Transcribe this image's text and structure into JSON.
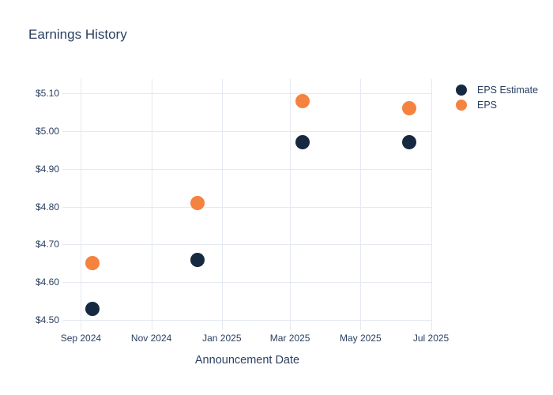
{
  "chart_data": {
    "type": "scatter",
    "title": "Earnings History",
    "xlabel": "Announcement Date",
    "ylabel": "",
    "text_color": "#2a3f5f",
    "grid": true,
    "grid_color": "#e5e9f2",
    "background": "#ffffff",
    "legend_position": "top-right",
    "x_range": [
      "2024-08-16",
      "2025-07-02"
    ],
    "y_range": [
      4.473,
      5.138
    ],
    "x_ticks": [
      {
        "x": "2024-09-01",
        "label": "Sep 2024"
      },
      {
        "x": "2024-11-01",
        "label": "Nov 2024"
      },
      {
        "x": "2025-01-01",
        "label": "Jan 2025"
      },
      {
        "x": "2025-03-01",
        "label": "Mar 2025"
      },
      {
        "x": "2025-05-01",
        "label": "May 2025"
      },
      {
        "x": "2025-07-01",
        "label": "Jul 2025"
      }
    ],
    "y_ticks": [
      {
        "y": 4.5,
        "label": "$4.50"
      },
      {
        "y": 4.6,
        "label": "$4.60"
      },
      {
        "y": 4.7,
        "label": "$4.70"
      },
      {
        "y": 4.8,
        "label": "$4.80"
      },
      {
        "y": 4.9,
        "label": "$4.90"
      },
      {
        "y": 5.0,
        "label": "$5.00"
      },
      {
        "y": 5.1,
        "label": "$5.10"
      }
    ],
    "marker_size": 18,
    "series": [
      {
        "name": "EPS Estimate",
        "color": "#172940",
        "points": [
          {
            "x": "2024-09-11",
            "y": 4.53
          },
          {
            "x": "2024-12-11",
            "y": 4.66
          },
          {
            "x": "2025-03-12",
            "y": 4.97
          },
          {
            "x": "2025-06-12",
            "y": 4.97
          }
        ]
      },
      {
        "name": "EPS",
        "color": "#f5823f",
        "points": [
          {
            "x": "2024-09-11",
            "y": 4.65
          },
          {
            "x": "2024-12-11",
            "y": 4.81
          },
          {
            "x": "2025-03-12",
            "y": 5.08
          },
          {
            "x": "2025-06-12",
            "y": 5.06
          }
        ]
      }
    ]
  }
}
